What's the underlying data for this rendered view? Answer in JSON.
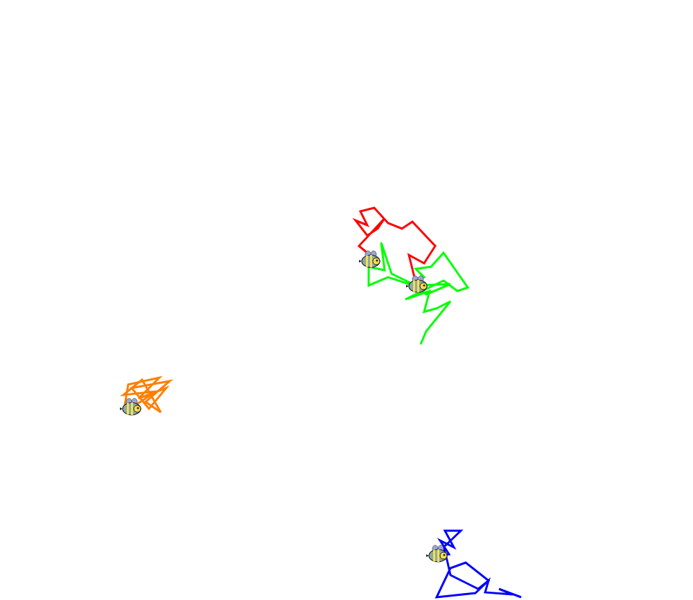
{
  "chart_data": {
    "type": "line",
    "xlim": [
      0,
      1000
    ],
    "ylim": [
      0,
      866
    ],
    "tick_labels": false,
    "grid": false,
    "series": [
      {
        "color": "#ff0000",
        "marker": "bee",
        "x": [
          598,
          590,
          612,
          628,
          595,
          580,
          560,
          540,
          520,
          530,
          513,
          530,
          545,
          555,
          518,
          530,
          535
        ],
        "y": [
          466,
          498,
          486,
          511,
          546,
          536,
          544,
          566,
          561,
          541,
          548,
          526,
          536,
          551,
          511,
          501,
          489
        ]
      },
      {
        "color": "#00ff00",
        "marker": "bee",
        "x": [
          607,
          615,
          650,
          630,
          612,
          620,
          585,
          640,
          660,
          675,
          640,
          622,
          600,
          612,
          590,
          560,
          532,
          532,
          555,
          550,
          565,
          600,
          650,
          615,
          603
        ],
        "y": [
          369,
          388,
          431,
          421,
          416,
          446,
          434,
          461,
          446,
          451,
          501,
          481,
          478,
          466,
          456,
          466,
          454,
          481,
          476,
          516,
          471,
          454,
          456,
          441,
          453
        ]
      },
      {
        "color": "#ff8000",
        "marker": "bee",
        "x": [
          180,
          185,
          230,
          200,
          240,
          215,
          190,
          245,
          210,
          232,
          205,
          178,
          225,
          195,
          190
        ],
        "y": [
          281,
          311,
          321,
          291,
          306,
          276,
          306,
          316,
          286,
          271,
          318,
          296,
          301,
          281,
          276
        ]
      },
      {
        "color": "#0000ff",
        "marker": "bee",
        "x": [
          752,
          720,
          740,
          700,
          705,
          686,
          630,
          650,
          672,
          705,
          690,
          650,
          645,
          640,
          665,
          642,
          655,
          635,
          648,
          632
        ],
        "y": [
          4,
          16,
          8,
          11,
          28,
          10,
          4,
          46,
          54,
          28,
          16,
          36,
          58,
          76,
          100,
          100,
          76,
          86,
          66,
          64
        ]
      }
    ]
  }
}
